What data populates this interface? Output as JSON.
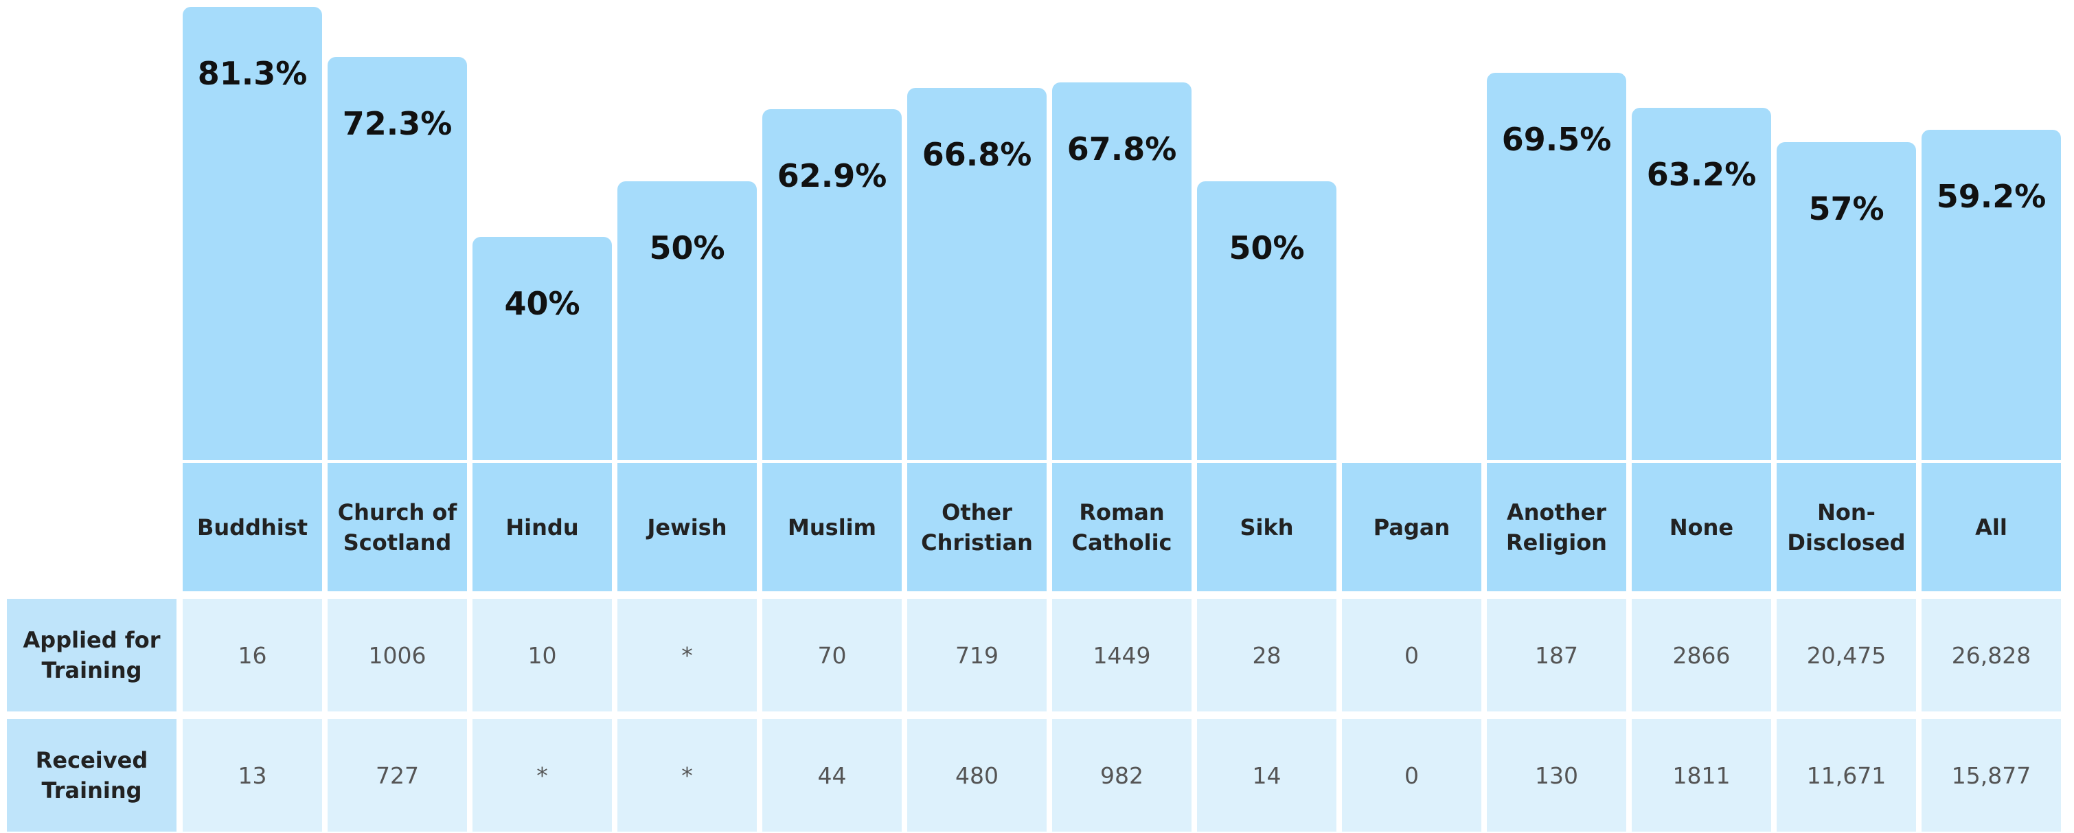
{
  "chart_data": {
    "type": "bar",
    "categories": [
      "Buddhist",
      "Church of Scotland",
      "Hindu",
      "Jewish",
      "Muslim",
      "Other Christian",
      "Roman Catholic",
      "Sikh",
      "Pagan",
      "Another Religion",
      "None",
      "Non-Disclosed",
      "All"
    ],
    "values": [
      81.3,
      72.3,
      40,
      50,
      62.9,
      66.8,
      67.8,
      50,
      null,
      69.5,
      63.2,
      57,
      59.2
    ],
    "value_labels": [
      "81.3%",
      "72.3%",
      "40%",
      "50%",
      "62.9%",
      "66.8%",
      "67.8%",
      "50%",
      null,
      "69.5%",
      "63.2%",
      "57%",
      "59.2%"
    ],
    "color": "#a6dcfb"
  },
  "table": {
    "rows": [
      {
        "label": "Applied for Training",
        "cells": [
          "16",
          "1006",
          "10",
          "*",
          "70",
          "719",
          "1449",
          "28",
          "0",
          "187",
          "2866",
          "20,475",
          "26,828"
        ]
      },
      {
        "label": "Received Training",
        "cells": [
          "13",
          "727",
          "*",
          "*",
          "44",
          "480",
          "982",
          "14",
          "0",
          "130",
          "1811",
          "11,671",
          "15,877"
        ]
      }
    ]
  }
}
